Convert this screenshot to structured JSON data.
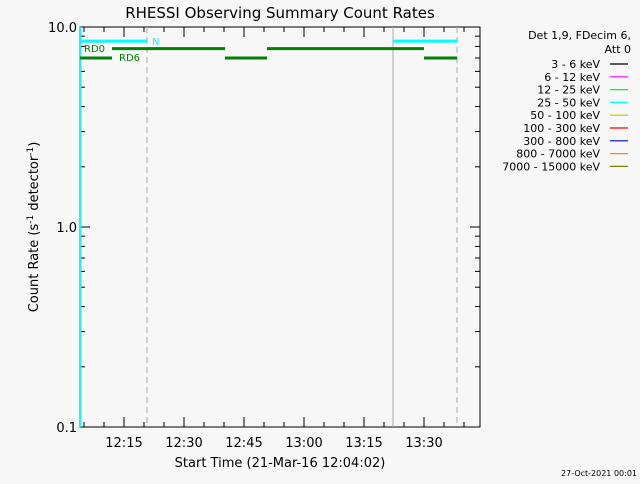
{
  "chart_data": {
    "type": "line",
    "title": "RHESSI Observing Summary Count Rates",
    "xlabel": "Start Time (21-Mar-16 12:04:02)",
    "ylabel": "Count Rate (s",
    "ylabel_sup1": "-1",
    "ylabel_mid": " detector",
    "ylabel_sup2": "-1",
    "ylabel_end": ")",
    "yscale": "log",
    "ylim": [
      0.1,
      10.0
    ],
    "xlim": [
      "12:04",
      "13:44"
    ],
    "y_tick_labels": [
      "10.0",
      "1.0",
      "0.1"
    ],
    "x_tick_labels": [
      "12:15",
      "12:30",
      "12:45",
      "13:00",
      "13:15",
      "13:30"
    ],
    "legend": {
      "header": [
        "Det 1,9, FDecim 6,",
        "Att 0"
      ],
      "placement": "right",
      "entries": [
        {
          "label": "3 - 6 keV",
          "color": "#000000"
        },
        {
          "label": "6 - 12 keV",
          "color": "#ff00ff"
        },
        {
          "label": "12 - 25 keV",
          "color": "#00ff00"
        },
        {
          "label": "25 - 50 keV",
          "color": "#00ffff"
        },
        {
          "label": "50 - 100 keV",
          "color": "#c8c800"
        },
        {
          "label": "100 - 300 keV",
          "color": "#ff0000"
        },
        {
          "label": "300 - 800 keV",
          "color": "#0000ff"
        },
        {
          "label": "800 - 7000 keV",
          "color": "#ff8c00"
        },
        {
          "label": "7000 - 15000 keV",
          "color": "#808000"
        }
      ]
    },
    "flag_bars": [
      {
        "label": "N",
        "color": "#00ffff",
        "level": 8.5,
        "segments": [
          [
            "12:04",
            "12:20:45"
          ],
          [
            "13:22:15",
            "13:38:15"
          ]
        ]
      },
      {
        "label": "RD0",
        "color": "#008000",
        "level": 7.8,
        "segments": [
          [
            "12:12",
            "12:40:15"
          ],
          [
            "12:50:45",
            "13:30"
          ]
        ]
      },
      {
        "label": "RD6",
        "color": "#008000",
        "level": 7.0,
        "segments": [
          [
            "12:04",
            "12:12"
          ],
          [
            "12:40:15",
            "12:50:45"
          ],
          [
            "13:30",
            "13:38:15"
          ]
        ]
      }
    ],
    "vertical_markers": [
      {
        "time": "12:04",
        "style": "solid",
        "color": "#00ffff"
      },
      {
        "time": "12:20:45",
        "style": "dashed",
        "color": "#00ffff"
      },
      {
        "time": "13:22:15",
        "style": "solid",
        "color": "#00ffff"
      },
      {
        "time": "13:38:15",
        "style": "dashed",
        "color": "#00ffff"
      }
    ]
  },
  "footer": {
    "timestamp": "27-Oct-2021 00:01"
  }
}
